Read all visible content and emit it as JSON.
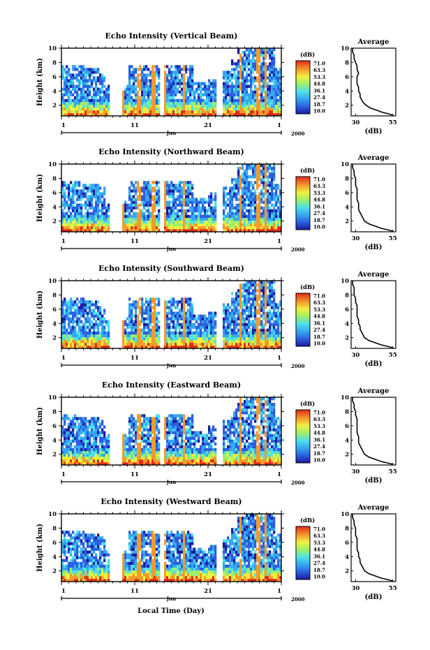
{
  "chart_data": {
    "type": "heatmap",
    "shared": {
      "ylabel": "Height (km)",
      "y_ticks": [
        2,
        4,
        6,
        8,
        10
      ],
      "ylim": [
        0.5,
        10
      ],
      "x_ticks": [
        "1",
        "11",
        "21",
        "1"
      ],
      "month_label": "Jun",
      "year_label": "2000",
      "xlabel": "Local Time (Day)",
      "colorbar_unit": "(dB)",
      "colorbar_ticks": [
        "71.0",
        "63.3",
        "53.3",
        "44.8",
        "36.1",
        "27.4",
        "18.7",
        "10.0"
      ],
      "colorbar_range": [
        10.0,
        71.0
      ],
      "avg_title": "Average",
      "avg_xlabel": "(dB)",
      "avg_x_ticks": [
        "30",
        "55"
      ],
      "avg_xlim": [
        27,
        57
      ]
    },
    "panels": [
      {
        "title": "Echo Intensity (Vertical Beam)",
        "average_profile": [
          [
            55,
            0.6
          ],
          [
            52,
            0.8
          ],
          [
            48,
            1.0
          ],
          [
            44,
            1.3
          ],
          [
            40,
            1.6
          ],
          [
            37,
            2.0
          ],
          [
            35,
            2.4
          ],
          [
            34,
            2.8
          ],
          [
            33,
            3.2
          ],
          [
            33,
            3.6
          ],
          [
            32,
            4.0
          ],
          [
            32,
            4.5
          ],
          [
            31,
            5.0
          ],
          [
            31,
            5.5
          ],
          [
            31,
            6.0
          ],
          [
            32,
            6.5
          ],
          [
            31,
            7.0
          ],
          [
            31,
            7.5
          ],
          [
            30,
            8.0
          ],
          [
            29,
            8.5
          ],
          [
            29,
            9.0
          ],
          [
            28,
            9.5
          ],
          [
            28,
            10.0
          ]
        ]
      },
      {
        "title": "Echo Intensity (Northward Beam)",
        "average_profile": [
          [
            55,
            0.6
          ],
          [
            51,
            0.8
          ],
          [
            47,
            1.0
          ],
          [
            43,
            1.3
          ],
          [
            39,
            1.6
          ],
          [
            36,
            2.0
          ],
          [
            35,
            2.4
          ],
          [
            34,
            2.8
          ],
          [
            33,
            3.2
          ],
          [
            32,
            3.6
          ],
          [
            32,
            4.0
          ],
          [
            32,
            4.5
          ],
          [
            31,
            5.0
          ],
          [
            31,
            5.5
          ],
          [
            31,
            6.0
          ],
          [
            31,
            6.5
          ],
          [
            30,
            7.0
          ],
          [
            30,
            7.5
          ],
          [
            30,
            8.0
          ],
          [
            29,
            8.5
          ],
          [
            29,
            9.0
          ],
          [
            28,
            9.5
          ],
          [
            28,
            10.0
          ]
        ]
      },
      {
        "title": "Echo Intensity (Southward Beam)",
        "average_profile": [
          [
            55,
            0.6
          ],
          [
            51,
            0.8
          ],
          [
            47,
            1.0
          ],
          [
            43,
            1.3
          ],
          [
            39,
            1.6
          ],
          [
            36,
            2.0
          ],
          [
            35,
            2.4
          ],
          [
            34,
            2.8
          ],
          [
            33,
            3.2
          ],
          [
            33,
            3.6
          ],
          [
            32,
            4.0
          ],
          [
            32,
            4.5
          ],
          [
            31,
            5.0
          ],
          [
            31,
            5.5
          ],
          [
            31,
            6.0
          ],
          [
            31,
            6.5
          ],
          [
            30,
            7.0
          ],
          [
            30,
            7.5
          ],
          [
            29,
            8.0
          ],
          [
            29,
            8.5
          ],
          [
            29,
            9.0
          ],
          [
            28,
            9.5
          ],
          [
            28,
            10.0
          ]
        ]
      },
      {
        "title": "Echo Intensity (Eastward Beam)",
        "average_profile": [
          [
            55,
            0.6
          ],
          [
            51,
            0.8
          ],
          [
            47,
            1.0
          ],
          [
            43,
            1.3
          ],
          [
            39,
            1.6
          ],
          [
            36,
            2.0
          ],
          [
            35,
            2.4
          ],
          [
            34,
            2.8
          ],
          [
            33,
            3.2
          ],
          [
            32,
            3.6
          ],
          [
            32,
            4.0
          ],
          [
            32,
            4.5
          ],
          [
            31,
            5.0
          ],
          [
            31,
            5.5
          ],
          [
            31,
            6.0
          ],
          [
            31,
            6.5
          ],
          [
            31,
            7.0
          ],
          [
            30,
            7.5
          ],
          [
            30,
            8.0
          ],
          [
            29,
            8.5
          ],
          [
            29,
            9.0
          ],
          [
            28,
            9.5
          ],
          [
            28,
            10.0
          ]
        ]
      },
      {
        "title": "Echo Intensity (Westward Beam)",
        "average_profile": [
          [
            55,
            0.6
          ],
          [
            51,
            0.8
          ],
          [
            47,
            1.0
          ],
          [
            43,
            1.3
          ],
          [
            39,
            1.6
          ],
          [
            36,
            2.0
          ],
          [
            35,
            2.4
          ],
          [
            34,
            2.8
          ],
          [
            33,
            3.2
          ],
          [
            33,
            3.6
          ],
          [
            32,
            4.0
          ],
          [
            32,
            4.5
          ],
          [
            31,
            5.0
          ],
          [
            31,
            5.5
          ],
          [
            31,
            6.0
          ],
          [
            31,
            6.5
          ],
          [
            30,
            7.0
          ],
          [
            30,
            7.5
          ],
          [
            30,
            8.0
          ],
          [
            29,
            8.5
          ],
          [
            29,
            9.0
          ],
          [
            28,
            9.5
          ],
          [
            28,
            10.0
          ]
        ]
      }
    ]
  }
}
